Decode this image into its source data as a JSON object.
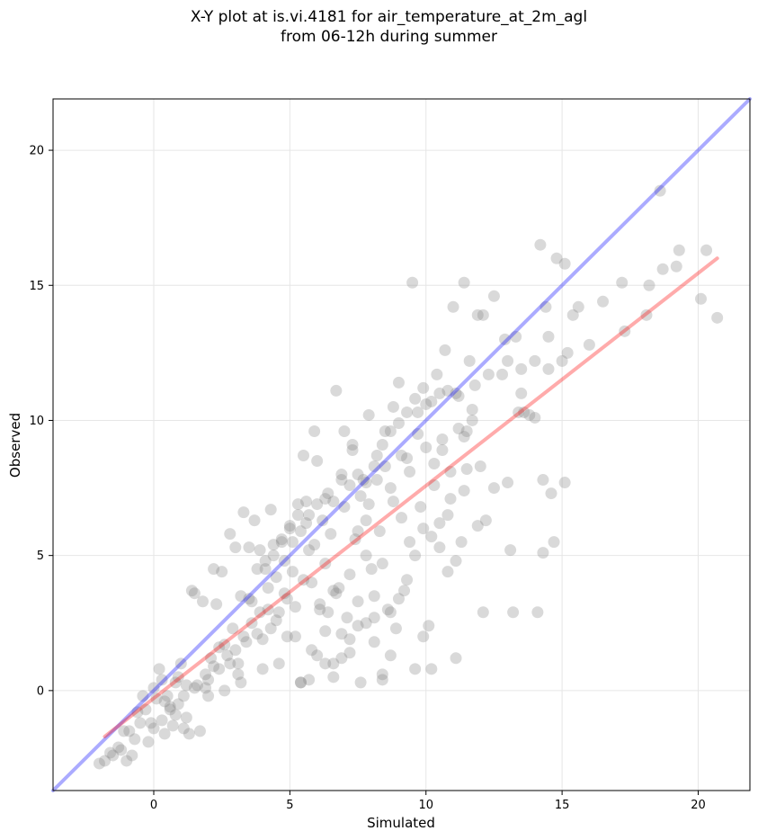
{
  "title_line1": "X-Y plot at is.vi.4181 for air_temperature_at_2m_agl",
  "title_line2": "from 06-12h during summer",
  "chart_data": {
    "type": "scatter",
    "title": "X-Y plot at is.vi.4181 for air_temperature_at_2m_agl\nfrom 06-12h during summer",
    "xlabel": "Simulated",
    "ylabel": "Observed",
    "xlim": [
      -3.7,
      21.9
    ],
    "ylim": [
      -3.7,
      21.9
    ],
    "xticks": [
      0,
      5,
      10,
      15,
      20
    ],
    "yticks": [
      0,
      5,
      10,
      15,
      20
    ],
    "grid": true,
    "point_color": "#808080",
    "identity_line_color": "#0000ff",
    "fit_line_color": "#ff0000",
    "identity_line": {
      "x": [
        -3.7,
        21.9
      ],
      "y": [
        -3.7,
        21.9
      ]
    },
    "fit_line": {
      "x": [
        -1.8,
        20.7
      ],
      "y": [
        -1.7,
        16.0
      ]
    },
    "points": [
      [
        -2.0,
        -2.7
      ],
      [
        -1.8,
        -2.6
      ],
      [
        -1.6,
        -2.3
      ],
      [
        -1.5,
        -2.4
      ],
      [
        -1.3,
        -2.1
      ],
      [
        -1.2,
        -2.2
      ],
      [
        -1.0,
        -2.6
      ],
      [
        -0.9,
        -1.5
      ],
      [
        -0.8,
        -2.4
      ],
      [
        -0.6,
        -0.8
      ],
      [
        -0.5,
        -1.2
      ],
      [
        -0.3,
        -0.7
      ],
      [
        -0.2,
        -1.9
      ],
      [
        0.0,
        -1.4
      ],
      [
        0.1,
        -0.3
      ],
      [
        0.2,
        0.8
      ],
      [
        0.3,
        -1.1
      ],
      [
        0.4,
        -1.6
      ],
      [
        0.5,
        -0.2
      ],
      [
        0.6,
        -0.7
      ],
      [
        0.7,
        -1.3
      ],
      [
        0.8,
        0.3
      ],
      [
        0.9,
        -0.5
      ],
      [
        1.0,
        1.0
      ],
      [
        1.1,
        -0.2
      ],
      [
        1.2,
        -1.0
      ],
      [
        1.3,
        -1.6
      ],
      [
        1.4,
        3.7
      ],
      [
        1.5,
        3.6
      ],
      [
        1.6,
        0.2
      ],
      [
        1.7,
        -1.5
      ],
      [
        1.8,
        3.3
      ],
      [
        1.9,
        0.1
      ],
      [
        2.0,
        -0.2
      ],
      [
        2.1,
        1.2
      ],
      [
        2.2,
        4.5
      ],
      [
        2.3,
        3.2
      ],
      [
        2.4,
        1.6
      ],
      [
        2.5,
        4.4
      ],
      [
        2.6,
        0.0
      ],
      [
        2.7,
        1.3
      ],
      [
        2.8,
        5.8
      ],
      [
        2.9,
        2.3
      ],
      [
        3.0,
        5.3
      ],
      [
        3.1,
        1.0
      ],
      [
        3.2,
        0.3
      ],
      [
        3.3,
        6.6
      ],
      [
        3.4,
        1.8
      ],
      [
        3.5,
        5.3
      ],
      [
        3.6,
        3.3
      ],
      [
        3.7,
        6.3
      ],
      [
        3.8,
        2.1
      ],
      [
        3.9,
        5.2
      ],
      [
        4.0,
        0.8
      ],
      [
        4.1,
        4.5
      ],
      [
        4.2,
        3.0
      ],
      [
        4.3,
        6.7
      ],
      [
        4.4,
        5.0
      ],
      [
        4.5,
        2.6
      ],
      [
        4.6,
        1.0
      ],
      [
        4.7,
        5.5
      ],
      [
        4.8,
        3.6
      ],
      [
        4.9,
        2.0
      ],
      [
        5.0,
        6.0
      ],
      [
        5.1,
        4.4
      ],
      [
        5.2,
        2.0
      ],
      [
        5.3,
        6.5
      ],
      [
        5.4,
        0.3
      ],
      [
        5.5,
        8.7
      ],
      [
        5.6,
        7.0
      ],
      [
        5.7,
        5.2
      ],
      [
        5.8,
        1.5
      ],
      [
        5.9,
        9.6
      ],
      [
        6.0,
        8.5
      ],
      [
        6.1,
        3.0
      ],
      [
        6.2,
        6.3
      ],
      [
        6.3,
        1.0
      ],
      [
        6.4,
        7.3
      ],
      [
        6.5,
        5.8
      ],
      [
        6.6,
        0.5
      ],
      [
        6.7,
        11.1
      ],
      [
        6.8,
        3.8
      ],
      [
        6.9,
        8.0
      ],
      [
        7.0,
        6.8
      ],
      [
        7.1,
        2.7
      ],
      [
        7.2,
        1.9
      ],
      [
        7.3,
        9.1
      ],
      [
        7.4,
        5.6
      ],
      [
        7.5,
        3.3
      ],
      [
        7.6,
        0.3
      ],
      [
        7.7,
        7.8
      ],
      [
        7.8,
        6.3
      ],
      [
        7.9,
        10.2
      ],
      [
        8.0,
        4.5
      ],
      [
        8.1,
        2.7
      ],
      [
        8.2,
        8.7
      ],
      [
        8.3,
        5.9
      ],
      [
        8.4,
        0.4
      ],
      [
        8.5,
        9.6
      ],
      [
        8.6,
        3.0
      ],
      [
        8.7,
        7.5
      ],
      [
        8.8,
        10.5
      ],
      [
        8.9,
        2.3
      ],
      [
        9.0,
        11.4
      ],
      [
        9.1,
        6.4
      ],
      [
        9.2,
        3.7
      ],
      [
        9.3,
        8.6
      ],
      [
        9.4,
        5.5
      ],
      [
        9.5,
        15.1
      ],
      [
        9.6,
        0.8
      ],
      [
        9.7,
        10.3
      ],
      [
        9.8,
        6.8
      ],
      [
        9.9,
        2.0
      ],
      [
        10.0,
        9.0
      ],
      [
        10.1,
        2.4
      ],
      [
        10.2,
        0.8
      ],
      [
        10.3,
        7.6
      ],
      [
        10.4,
        11.7
      ],
      [
        10.5,
        5.3
      ],
      [
        10.6,
        8.9
      ],
      [
        10.7,
        12.6
      ],
      [
        10.8,
        4.4
      ],
      [
        10.9,
        7.1
      ],
      [
        11.0,
        14.2
      ],
      [
        11.1,
        1.2
      ],
      [
        11.2,
        10.9
      ],
      [
        11.3,
        5.5
      ],
      [
        11.4,
        15.1
      ],
      [
        11.5,
        8.2
      ],
      [
        11.6,
        12.2
      ],
      [
        11.7,
        10.0
      ],
      [
        11.8,
        11.3
      ],
      [
        11.9,
        13.9
      ],
      [
        12.0,
        8.3
      ],
      [
        12.1,
        2.9
      ],
      [
        12.3,
        11.7
      ],
      [
        12.5,
        14.6
      ],
      [
        12.8,
        11.7
      ],
      [
        13.0,
        12.2
      ],
      [
        13.1,
        5.2
      ],
      [
        13.2,
        2.9
      ],
      [
        13.4,
        10.3
      ],
      [
        13.5,
        11.9
      ],
      [
        13.8,
        10.2
      ],
      [
        14.0,
        12.2
      ],
      [
        14.1,
        2.9
      ],
      [
        14.2,
        16.5
      ],
      [
        14.3,
        5.1
      ],
      [
        14.4,
        14.2
      ],
      [
        14.5,
        11.9
      ],
      [
        14.6,
        7.3
      ],
      [
        14.7,
        5.5
      ],
      [
        15.0,
        12.2
      ],
      [
        15.1,
        15.8
      ],
      [
        15.2,
        12.5
      ],
      [
        15.4,
        13.9
      ],
      [
        15.6,
        14.2
      ],
      [
        16.0,
        12.8
      ],
      [
        16.5,
        14.4
      ],
      [
        17.2,
        15.1
      ],
      [
        17.3,
        13.3
      ],
      [
        18.1,
        13.9
      ],
      [
        18.2,
        15.0
      ],
      [
        18.6,
        18.5
      ],
      [
        18.7,
        15.6
      ],
      [
        19.2,
        15.7
      ],
      [
        19.3,
        16.3
      ],
      [
        20.1,
        14.5
      ],
      [
        20.3,
        16.3
      ],
      [
        20.7,
        13.8
      ],
      [
        -0.4,
        -0.2
      ],
      [
        0.0,
        0.1
      ],
      [
        0.3,
        0.4
      ],
      [
        0.6,
        -0.6
      ],
      [
        0.9,
        0.5
      ],
      [
        1.2,
        0.2
      ],
      [
        1.5,
        0.1
      ],
      [
        1.9,
        0.6
      ],
      [
        2.2,
        0.9
      ],
      [
        2.6,
        1.7
      ],
      [
        3.0,
        1.5
      ],
      [
        3.3,
        2.0
      ],
      [
        3.6,
        2.5
      ],
      [
        3.9,
        2.9
      ],
      [
        4.2,
        3.8
      ],
      [
        4.5,
        4.2
      ],
      [
        4.8,
        4.8
      ],
      [
        5.1,
        5.5
      ],
      [
        5.4,
        5.9
      ],
      [
        5.7,
        6.5
      ],
      [
        6.0,
        6.9
      ],
      [
        6.3,
        7.1
      ],
      [
        6.6,
        7.0
      ],
      [
        6.9,
        7.8
      ],
      [
        7.2,
        7.6
      ],
      [
        7.5,
        8.0
      ],
      [
        7.8,
        7.7
      ],
      [
        8.1,
        8.3
      ],
      [
        8.4,
        9.1
      ],
      [
        8.7,
        9.6
      ],
      [
        9.0,
        9.9
      ],
      [
        9.3,
        10.3
      ],
      [
        9.6,
        10.8
      ],
      [
        9.9,
        11.2
      ],
      [
        10.2,
        10.7
      ],
      [
        10.5,
        11.0
      ],
      [
        10.8,
        11.1
      ],
      [
        11.1,
        11.0
      ],
      [
        11.4,
        9.4
      ],
      [
        11.7,
        10.4
      ],
      [
        6.3,
        4.7
      ],
      [
        6.6,
        3.7
      ],
      [
        6.9,
        2.1
      ],
      [
        7.2,
        4.3
      ],
      [
        7.5,
        5.9
      ],
      [
        7.8,
        5.0
      ],
      [
        8.1,
        3.5
      ],
      [
        8.4,
        4.7
      ],
      [
        8.7,
        2.9
      ],
      [
        9.0,
        3.4
      ],
      [
        9.3,
        4.1
      ],
      [
        9.6,
        5.0
      ],
      [
        9.9,
        6.0
      ],
      [
        10.2,
        5.7
      ],
      [
        10.5,
        6.2
      ],
      [
        10.8,
        6.5
      ],
      [
        11.1,
        4.8
      ],
      [
        11.4,
        7.4
      ],
      [
        5.4,
        0.3
      ],
      [
        5.7,
        0.4
      ],
      [
        6.0,
        1.3
      ],
      [
        6.3,
        2.2
      ],
      [
        6.6,
        1.0
      ],
      [
        6.9,
        1.2
      ],
      [
        7.2,
        1.4
      ],
      [
        7.5,
        2.4
      ],
      [
        7.8,
        2.5
      ],
      [
        8.1,
        1.8
      ],
      [
        8.4,
        0.6
      ],
      [
        8.7,
        1.3
      ],
      [
        3.2,
        3.5
      ],
      [
        3.5,
        3.4
      ],
      [
        3.8,
        4.5
      ],
      [
        4.1,
        4.8
      ],
      [
        4.4,
        5.4
      ],
      [
        4.7,
        5.6
      ],
      [
        5.0,
        6.1
      ],
      [
        5.3,
        6.9
      ],
      [
        5.6,
        6.2
      ],
      [
        5.9,
        5.4
      ],
      [
        4.0,
        1.9
      ],
      [
        4.3,
        2.3
      ],
      [
        4.6,
        2.9
      ],
      [
        4.9,
        3.4
      ],
      [
        5.2,
        3.1
      ],
      [
        5.5,
        4.1
      ],
      [
        5.8,
        4.0
      ],
      [
        6.1,
        3.2
      ],
      [
        6.4,
        2.9
      ],
      [
        6.7,
        3.6
      ],
      [
        -1.1,
        -1.5
      ],
      [
        -0.7,
        -1.8
      ],
      [
        -0.1,
        -1.2
      ],
      [
        0.4,
        -0.4
      ],
      [
        0.8,
        -0.9
      ],
      [
        1.1,
        -1.4
      ],
      [
        2.0,
        0.4
      ],
      [
        2.4,
        0.8
      ],
      [
        2.8,
        1.0
      ],
      [
        3.1,
        0.6
      ],
      [
        7.0,
        9.6
      ],
      [
        7.3,
        8.9
      ],
      [
        7.6,
        7.2
      ],
      [
        7.9,
        6.9
      ],
      [
        8.2,
        7.8
      ],
      [
        8.5,
        8.3
      ],
      [
        8.8,
        7.0
      ],
      [
        9.1,
        8.7
      ],
      [
        9.4,
        8.1
      ],
      [
        9.7,
        9.5
      ],
      [
        10.0,
        10.6
      ],
      [
        10.3,
        8.4
      ],
      [
        10.6,
        9.3
      ],
      [
        10.9,
        8.1
      ],
      [
        11.2,
        9.7
      ],
      [
        11.5,
        9.6
      ],
      [
        11.9,
        6.1
      ],
      [
        12.2,
        6.3
      ],
      [
        12.5,
        7.5
      ],
      [
        13.0,
        7.7
      ],
      [
        13.3,
        13.1
      ],
      [
        13.6,
        10.3
      ],
      [
        14.0,
        10.1
      ],
      [
        14.3,
        7.8
      ],
      [
        14.5,
        13.1
      ],
      [
        14.8,
        16.0
      ],
      [
        15.1,
        7.7
      ],
      [
        13.5,
        11.0
      ],
      [
        12.9,
        13.0
      ],
      [
        12.1,
        13.9
      ]
    ]
  }
}
